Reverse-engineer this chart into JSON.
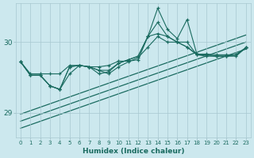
{
  "xlabel": "Humidex (Indice chaleur)",
  "bg_color": "#cce8ee",
  "line_color": "#1a6b60",
  "grid_color": "#a8c8d0",
  "xlim": [
    -0.5,
    23.5
  ],
  "ylim": [
    28.65,
    30.55
  ],
  "yticks": [
    29,
    30
  ],
  "xticks": [
    0,
    1,
    2,
    3,
    4,
    5,
    6,
    7,
    8,
    9,
    10,
    11,
    12,
    13,
    14,
    15,
    16,
    17,
    18,
    19,
    20,
    21,
    22,
    23
  ],
  "series": [
    [
      29.72,
      29.55,
      29.55,
      29.55,
      29.55,
      29.67,
      29.67,
      29.65,
      29.65,
      29.67,
      29.73,
      29.73,
      29.75,
      30.08,
      30.12,
      30.08,
      30.0,
      29.93,
      29.82,
      29.82,
      29.8,
      29.8,
      29.82,
      29.92
    ],
    [
      29.72,
      29.53,
      29.53,
      29.38,
      29.33,
      29.55,
      29.67,
      29.65,
      29.55,
      29.58,
      29.7,
      29.75,
      29.8,
      30.08,
      30.28,
      30.08,
      30.0,
      29.93,
      29.83,
      29.82,
      29.8,
      29.8,
      29.82,
      29.92
    ],
    [
      29.72,
      29.53,
      29.53,
      29.38,
      29.33,
      29.65,
      29.67,
      29.65,
      29.6,
      29.6,
      29.7,
      29.75,
      29.8,
      30.08,
      30.48,
      30.18,
      30.05,
      30.32,
      29.83,
      29.83,
      29.82,
      29.82,
      29.82,
      29.92
    ],
    [
      29.72,
      29.53,
      29.53,
      29.38,
      29.33,
      29.65,
      29.67,
      29.65,
      29.6,
      29.55,
      29.65,
      29.72,
      29.78,
      29.93,
      30.08,
      30.0,
      30.0,
      30.0,
      29.82,
      29.8,
      29.8,
      29.8,
      29.8,
      29.92
    ]
  ],
  "regression_lines": [
    {
      "x": [
        0,
        23
      ],
      "y": [
        28.78,
        29.9
      ]
    },
    {
      "x": [
        0,
        23
      ],
      "y": [
        28.88,
        30.0
      ]
    },
    {
      "x": [
        0,
        23
      ],
      "y": [
        28.98,
        30.1
      ]
    }
  ]
}
